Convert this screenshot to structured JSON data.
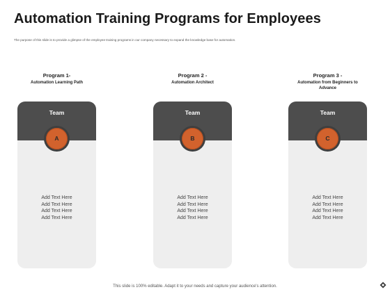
{
  "header": {
    "title": "Automation Training Programs for Employees",
    "subtitle": "The purpose of this slide is to provide a glimpse of the employee training programs in our company necessary to expand the knowledge base for automation."
  },
  "programs": [
    {
      "name": "Program 1-",
      "subtitle": "Automation Learning Path",
      "card_label": "Team",
      "badge": "A",
      "texts": [
        "Add Text Here",
        "Add Text Here",
        "Add Text Here",
        "Add Text Here"
      ]
    },
    {
      "name": "Program 2 -",
      "subtitle": "Automation Architect",
      "card_label": "Team",
      "badge": "B",
      "texts": [
        "Add Text Here",
        "Add Text Here",
        "Add Text Here",
        "Add Text Here"
      ]
    },
    {
      "name": "Program 3 -",
      "subtitle": "Automation from Beginners to Advance",
      "card_label": "Team",
      "badge": "C",
      "texts": [
        "Add Text Here",
        "Add Text Here",
        "Add Text Here",
        "Add Text Here"
      ]
    }
  ],
  "footer": {
    "text": "This slide is 100% editable. Adapt it to your needs and capture your audience's attention."
  },
  "colors": {
    "card_header": "#4d4d4d",
    "card_body": "#eeeeee",
    "badge_accent": "#d2622d"
  },
  "icons": {
    "corner": "diamond-logo-icon"
  }
}
